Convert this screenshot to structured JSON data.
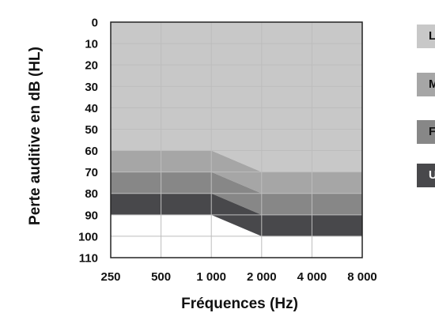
{
  "chart_data": {
    "type": "area",
    "ylabel": "Perte auditive en dB (HL)",
    "xlabel": "Fréquences (Hz)",
    "x_ticks": [
      "250",
      "500",
      "1 000",
      "2 000",
      "4 000",
      "8 000"
    ],
    "y_ticks": [
      "0",
      "10",
      "20",
      "30",
      "40",
      "50",
      "60",
      "70",
      "80",
      "90",
      "100",
      "110"
    ],
    "ylim": [
      0,
      110
    ],
    "y_inverted": true,
    "grid": true,
    "bands": [
      {
        "label": "L",
        "color": "#c8c8c8",
        "from": [
          0,
          0,
          0,
          0,
          0,
          0
        ],
        "to": [
          60,
          60,
          60,
          70,
          70,
          70
        ]
      },
      {
        "label": "M",
        "color": "#a6a6a6",
        "from": [
          60,
          60,
          60,
          70,
          70,
          70
        ],
        "to": [
          70,
          70,
          70,
          80,
          80,
          80
        ]
      },
      {
        "label": "F",
        "color": "#878787",
        "from": [
          70,
          70,
          70,
          80,
          80,
          80
        ],
        "to": [
          80,
          80,
          80,
          90,
          90,
          90
        ]
      },
      {
        "label": "U",
        "color": "#48484b",
        "from": [
          80,
          80,
          80,
          90,
          90,
          90
        ],
        "to": [
          90,
          90,
          90,
          100,
          100,
          100
        ]
      }
    ]
  },
  "legend": [
    {
      "label": "L",
      "color": "#c8c8c8"
    },
    {
      "label": "M",
      "color": "#a6a6a6"
    },
    {
      "label": "F",
      "color": "#878787"
    },
    {
      "label": "U",
      "color": "#48484b"
    }
  ]
}
